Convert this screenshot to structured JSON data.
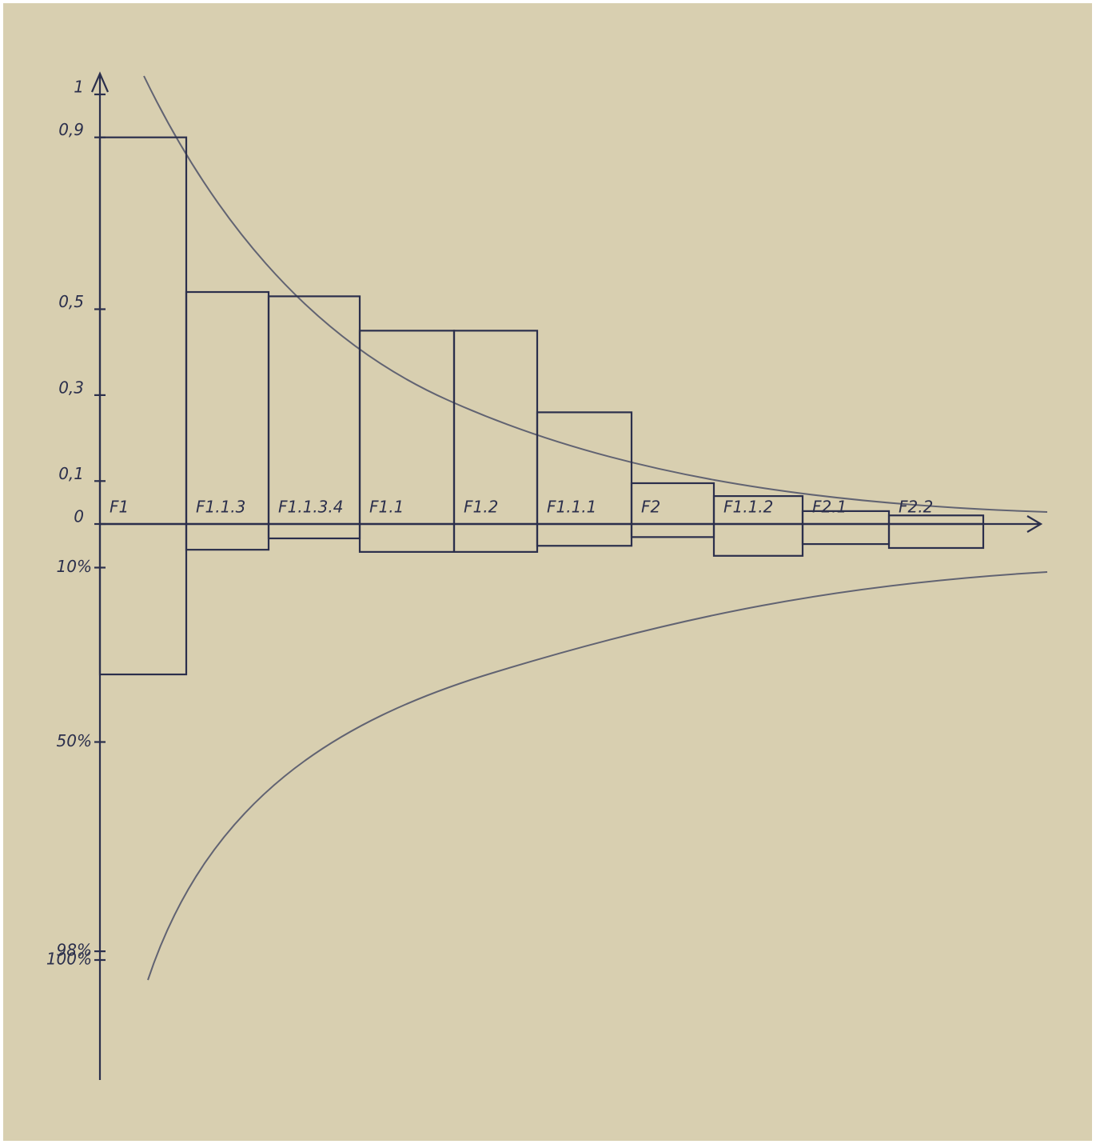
{
  "chart_data": {
    "type": "bar",
    "categories": [
      "F1",
      "F1.1.3",
      "F1.1.3.4",
      "F1.1",
      "F1.2",
      "F1.1.1",
      "F2",
      "F1.1.2",
      "F2.1",
      "F2.2"
    ],
    "series": [
      {
        "color": "#2b2f4c",
        "values": [
          0.9,
          0.54,
          0.53,
          0.45,
          0.45,
          0.26,
          0.095,
          0.065,
          0.03,
          0.02
        ]
      },
      {
        "color": "#2b2f4c",
        "axis": "y2",
        "values": [
          34.5,
          5.9,
          3.3,
          6.4,
          6.4,
          5,
          3,
          7.3,
          4.6,
          5.5
        ]
      }
    ],
    "ylim": [
      0,
      1
    ],
    "yticks": [
      {
        "value": 0,
        "label": "0"
      },
      {
        "value": 0.1,
        "label": "0,1"
      },
      {
        "value": 0.3,
        "label": "0,3"
      },
      {
        "value": 0.5,
        "label": "0,5"
      },
      {
        "value": 0.9,
        "label": "0,9"
      },
      1
    ],
    "y2lim": [
      0,
      100
    ],
    "y2ticks": [
      {
        "value": 10,
        "label": "10%"
      },
      {
        "value": 50,
        "label": "50%"
      },
      {
        "value": 98,
        "label": "98%"
      },
      {
        "value": 100,
        "label": "100%"
      }
    ]
  }
}
